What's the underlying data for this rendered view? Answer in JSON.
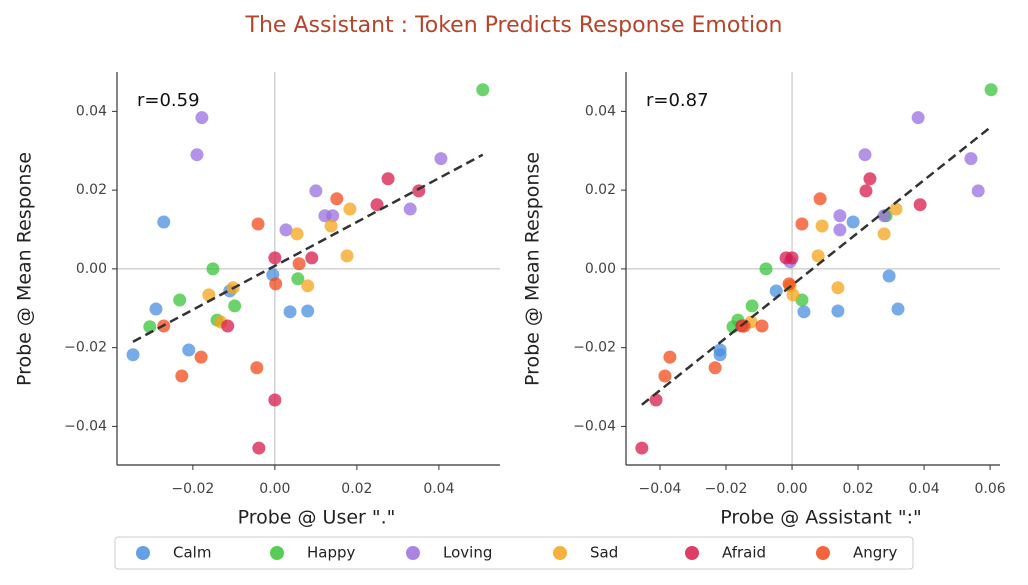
{
  "title": "The Assistant : Token Predicts Response Emotion",
  "chart_data": [
    {
      "type": "scatter",
      "xlabel": "Probe @ User \".\"",
      "ylabel": "Probe @ Mean Response",
      "annotation": "r=0.59",
      "xlim": [
        -0.0385,
        0.0549
      ],
      "ylim": [
        -0.0498,
        0.05
      ],
      "xticks": [
        {
          "value": -0.02,
          "label": "−0.02"
        },
        {
          "value": 0,
          "label": "0.00"
        },
        {
          "value": 0.02,
          "label": "0.02"
        },
        {
          "value": 0.04,
          "label": "0.04"
        }
      ],
      "yticks": [
        {
          "value": -0.04,
          "label": "−0.04"
        },
        {
          "value": -0.02,
          "label": "−0.02"
        },
        {
          "value": 0,
          "label": "0.00"
        },
        {
          "value": 0.02,
          "label": "0.02"
        },
        {
          "value": 0.04,
          "label": "0.04"
        }
      ],
      "series": [
        {
          "name": "Calm",
          "color": "#4a8fe0",
          "x": [
            -0.0271,
            -0.029,
            -0.0346,
            -0.021,
            -0.011,
            -0.0005,
            0.0037,
            0.008
          ],
          "values": [
            0.0119,
            -0.0102,
            -0.0218,
            -0.0206,
            -0.0056,
            -0.0015,
            -0.0109,
            -0.0107
          ]
        },
        {
          "name": "Happy",
          "color": "#3ac43a",
          "x": [
            0.0507,
            -0.0151,
            -0.0232,
            -0.0305,
            -0.0141,
            -0.0098,
            0.0056
          ],
          "values": [
            0.0455,
            0,
            -0.0079,
            -0.0147,
            -0.013,
            -0.0094,
            -0.0025
          ]
        },
        {
          "name": "Loving",
          "color": "#9a6fe0",
          "x": [
            -0.0178,
            -0.019,
            0.01,
            0.0027,
            0.0122,
            0.0141,
            0.033,
            0.0405
          ],
          "values": [
            0.0384,
            0.029,
            0.0198,
            0.0099,
            0.0135,
            0.0135,
            0.0152,
            0.028
          ]
        },
        {
          "name": "Sad",
          "color": "#f5a31a",
          "x": [
            -0.0161,
            -0.0132,
            -0.0102,
            0.0054,
            0.008,
            0.0137,
            0.0183,
            0.0176
          ],
          "values": [
            -0.0066,
            -0.0135,
            -0.0048,
            0.0089,
            -0.0043,
            0.0109,
            0.0152,
            0.0033
          ]
        },
        {
          "name": "Afraid",
          "color": "#d81b4a",
          "x": [
            -0.0115,
            0,
            -0.0039,
            0,
            0.009,
            0.0249,
            0.0276,
            0.0351
          ],
          "values": [
            -0.0145,
            -0.0333,
            -0.0455,
            0.0028,
            0.0028,
            0.0163,
            0.0229,
            0.0198
          ]
        },
        {
          "name": "Angry",
          "color": "#f24a1a",
          "x": [
            -0.0271,
            -0.0227,
            -0.018,
            -0.0041,
            -0.0044,
            0.0002,
            0.0059,
            0.0151
          ],
          "values": [
            -0.0145,
            -0.0272,
            -0.0224,
            0.0114,
            -0.0251,
            -0.0038,
            0.0013,
            0.0178
          ]
        }
      ],
      "fit": {
        "x": [
          -0.0346,
          0.0507
        ],
        "y": [
          -0.0185,
          0.029
        ]
      }
    },
    {
      "type": "scatter",
      "xlabel": "Probe @ Assistant \":\"",
      "ylabel": "Probe @ Mean Response",
      "annotation": "r=0.87",
      "xlim": [
        -0.0503,
        0.063
      ],
      "ylim": [
        -0.0498,
        0.05
      ],
      "xticks": [
        {
          "value": -0.04,
          "label": "−0.04"
        },
        {
          "value": -0.02,
          "label": "−0.02"
        },
        {
          "value": 0,
          "label": "0.00"
        },
        {
          "value": 0.02,
          "label": "0.02"
        },
        {
          "value": 0.04,
          "label": "0.04"
        },
        {
          "value": 0.06,
          "label": "0.06"
        }
      ],
      "yticks": [
        {
          "value": -0.04,
          "label": "−0.04"
        },
        {
          "value": -0.02,
          "label": "−0.02"
        },
        {
          "value": 0,
          "label": "0.00"
        },
        {
          "value": 0.02,
          "label": "0.02"
        },
        {
          "value": 0.04,
          "label": "0.04"
        }
      ],
      "series": [
        {
          "name": "Calm",
          "color": "#4a8fe0",
          "x": [
            -0.0048,
            0.0036,
            0.0139,
            0.0185,
            0.0294,
            0.0321,
            -0.0218,
            -0.0218
          ],
          "values": [
            -0.0056,
            -0.0109,
            -0.0107,
            0.0119,
            -0.0018,
            -0.0102,
            -0.0218,
            -0.0206
          ]
        },
        {
          "name": "Happy",
          "color": "#3ac43a",
          "x": [
            0.0603,
            -0.0079,
            -0.0121,
            -0.0164,
            -0.0179,
            0.003,
            0.0285
          ],
          "values": [
            0.0455,
            0,
            -0.0094,
            -0.013,
            -0.0147,
            -0.0079,
            0.0135
          ]
        },
        {
          "name": "Loving",
          "color": "#9a6fe0",
          "x": [
            0.0382,
            0.0221,
            0.0145,
            0.0145,
            0.0279,
            0.0542,
            0.0564,
            -0.0006
          ],
          "values": [
            0.0384,
            0.029,
            0.0135,
            0.0099,
            0.0135,
            0.028,
            0.0198,
            0.0018
          ]
        },
        {
          "name": "Sad",
          "color": "#f5a31a",
          "x": [
            0.0091,
            0.0079,
            0.0139,
            0.0279,
            0.0315,
            -0.0124,
            0.0003,
            -0.0006
          ],
          "values": [
            0.0109,
            0.0033,
            -0.0048,
            0.0089,
            0.0152,
            -0.0135,
            -0.0066,
            -0.0043
          ]
        },
        {
          "name": "Afraid",
          "color": "#d81b4a",
          "x": [
            -0.0455,
            -0.0412,
            -0.0152,
            -0.0018,
            0.0224,
            0.0236,
            0.0388,
            0
          ],
          "values": [
            -0.0455,
            -0.0333,
            -0.0145,
            0.0028,
            0.0198,
            0.0229,
            0.0163,
            0.0028
          ]
        },
        {
          "name": "Angry",
          "color": "#f24a1a",
          "x": [
            -0.037,
            -0.0385,
            -0.0233,
            -0.0145,
            -0.0091,
            0.003,
            0.0085,
            -0.0009
          ],
          "values": [
            -0.0224,
            -0.0272,
            -0.0251,
            -0.0145,
            -0.0145,
            0.0114,
            0.0178,
            -0.0038
          ]
        }
      ],
      "fit": {
        "x": [
          -0.0455,
          0.0603
        ],
        "y": [
          -0.0345,
          0.0361
        ]
      }
    }
  ]
}
